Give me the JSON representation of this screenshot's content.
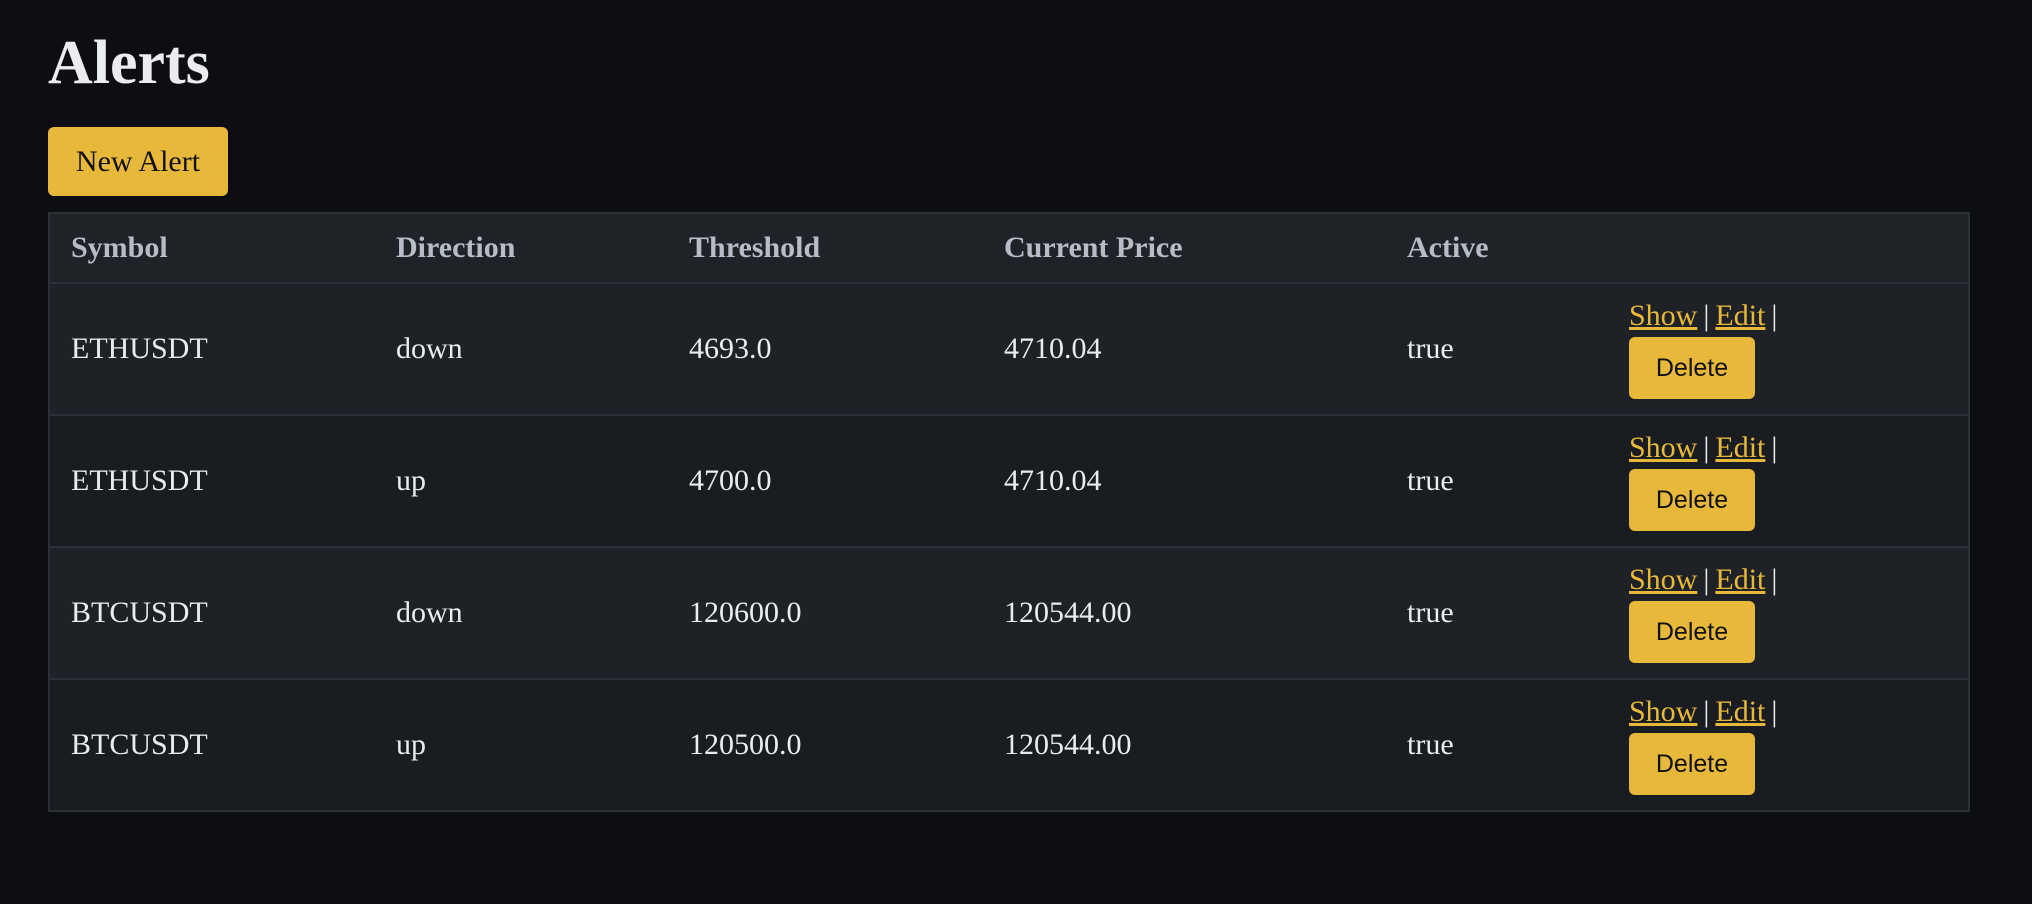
{
  "page": {
    "title": "Alerts",
    "new_alert_label": "New Alert"
  },
  "table": {
    "headers": [
      "Symbol",
      "Direction",
      "Threshold",
      "Current Price",
      "Active",
      ""
    ],
    "rows": [
      {
        "symbol": "ETHUSDT",
        "direction": "down",
        "threshold": "4693.0",
        "current_price": "4710.04",
        "active": "true"
      },
      {
        "symbol": "ETHUSDT",
        "direction": "up",
        "threshold": "4700.0",
        "current_price": "4710.04",
        "active": "true"
      },
      {
        "symbol": "BTCUSDT",
        "direction": "down",
        "threshold": "120600.0",
        "current_price": "120544.00",
        "active": "true"
      },
      {
        "symbol": "BTCUSDT",
        "direction": "up",
        "threshold": "120500.0",
        "current_price": "120544.00",
        "active": "true"
      }
    ]
  },
  "actions": {
    "show_label": "Show",
    "edit_label": "Edit",
    "separator": "|",
    "delete_label": "Delete"
  },
  "colors": {
    "background": "#0c0e11",
    "accent": "#e8b83a",
    "header_bg": "#1f2227",
    "text": "#eaecef",
    "muted_text": "#b7bdc6"
  }
}
